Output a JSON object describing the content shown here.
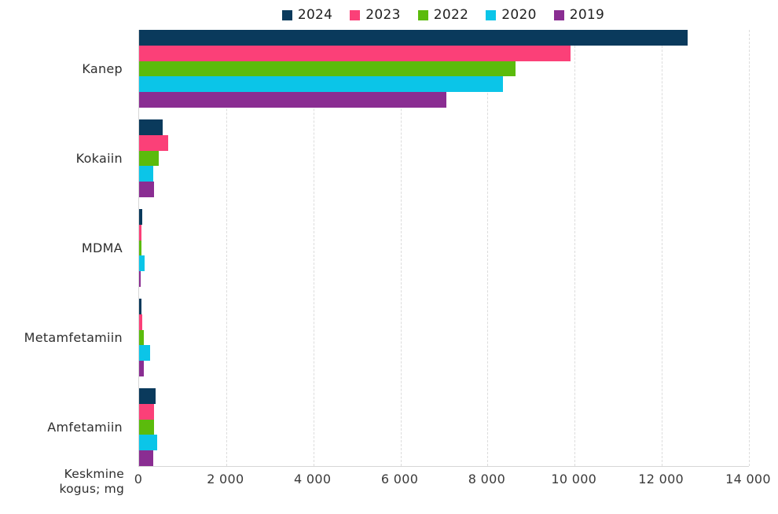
{
  "chart_data": {
    "type": "bar",
    "orientation": "horizontal",
    "title": "",
    "xlabel": "Keskmine kogus; mg",
    "xlabel_line1": "Keskmine",
    "xlabel_line2": "kogus; mg",
    "categories": [
      "Kanep",
      "Kokaiin",
      "MDMA",
      "Metamfetamiin",
      "Amfetamiin"
    ],
    "series": [
      {
        "name": "2024",
        "color": "#0a3a5c",
        "values": [
          12600,
          550,
          70,
          55,
          370
        ]
      },
      {
        "name": "2023",
        "color": "#fb4078",
        "values": [
          9900,
          670,
          55,
          70,
          350
        ]
      },
      {
        "name": "2022",
        "color": "#5bbb0c",
        "values": [
          8650,
          460,
          55,
          110,
          350
        ]
      },
      {
        "name": "2020",
        "color": "#0bc5e8",
        "values": [
          8350,
          320,
          125,
          260,
          410
        ]
      },
      {
        "name": "2019",
        "color": "#8a2d92",
        "values": [
          7050,
          340,
          40,
          100,
          320
        ]
      }
    ],
    "xlim": [
      0,
      14000
    ],
    "x_ticks": [
      0,
      2000,
      4000,
      6000,
      8000,
      10000,
      12000,
      14000
    ],
    "x_tick_labels": [
      "0",
      "2 000",
      "4 000",
      "6 000",
      "8 000",
      "10 000",
      "12 000",
      "14 000"
    ],
    "grid": "vertical-dashed",
    "legend_position": "top"
  },
  "style": {
    "grid_color": "#dcdcdc",
    "axis_color": "#d6d6d6",
    "text_color": "#2e2e2e",
    "background": "#ffffff"
  }
}
